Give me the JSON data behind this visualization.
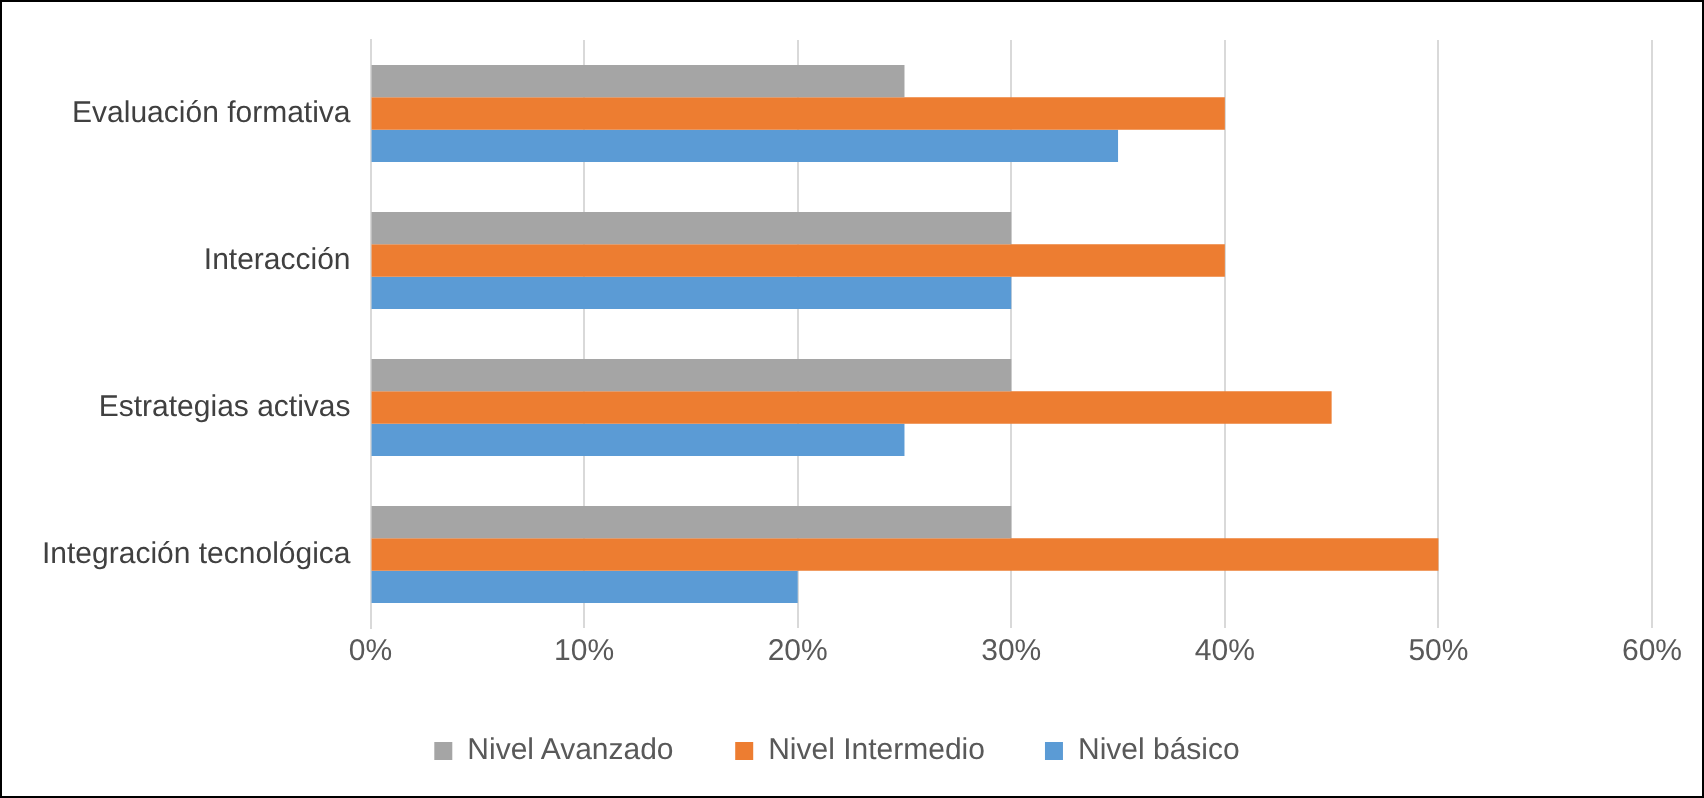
{
  "chart_data": {
    "type": "bar",
    "orientation": "horizontal",
    "categories": [
      "Evaluación formativa",
      "Interacción",
      "Estrategias activas",
      "Integración tecnológica"
    ],
    "series": [
      {
        "name": "Nivel Avanzado",
        "color": "#a5a5a5",
        "values": [
          25,
          30,
          30,
          30
        ]
      },
      {
        "name": "Nivel Intermedio",
        "color": "#ed7d31",
        "values": [
          40,
          40,
          45,
          50
        ]
      },
      {
        "name": "Nivel básico",
        "color": "#5b9bd5",
        "values": [
          35,
          30,
          25,
          20
        ]
      }
    ],
    "xlim": [
      0,
      60
    ],
    "xticks": [
      {
        "value": 0,
        "label": "0%"
      },
      {
        "value": 10,
        "label": "10%"
      },
      {
        "value": 20,
        "label": "20%"
      },
      {
        "value": 30,
        "label": "30%"
      },
      {
        "value": 40,
        "label": "40%"
      },
      {
        "value": 50,
        "label": "50%"
      },
      {
        "value": 60,
        "label": "60%"
      }
    ],
    "grid": "x",
    "legend": "bottom"
  }
}
